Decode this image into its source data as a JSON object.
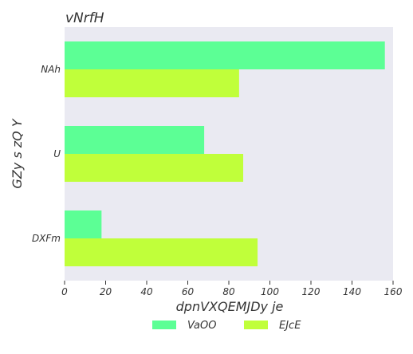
{
  "chart_data": {
    "type": "bar",
    "orientation": "horizontal",
    "title": "vNrfH",
    "xlabel": "dpnVXQEMJDy je",
    "ylabel": "GZy s zQ Y",
    "categories": [
      "NAh",
      "U",
      "DXFm"
    ],
    "series": [
      {
        "name": "VaOO",
        "color": "#5cff95",
        "values": [
          156,
          68,
          18
        ]
      },
      {
        "name": "EJcE",
        "color": "#c0ff3a",
        "values": [
          85,
          87,
          94
        ]
      }
    ],
    "xlim": [
      0,
      160
    ],
    "xticks": [
      "0",
      "20",
      "40",
      "60",
      "80",
      "100",
      "120",
      "140",
      "160"
    ],
    "grid": false,
    "background": "#eaeaf2",
    "legend_position": "bottom-center"
  }
}
